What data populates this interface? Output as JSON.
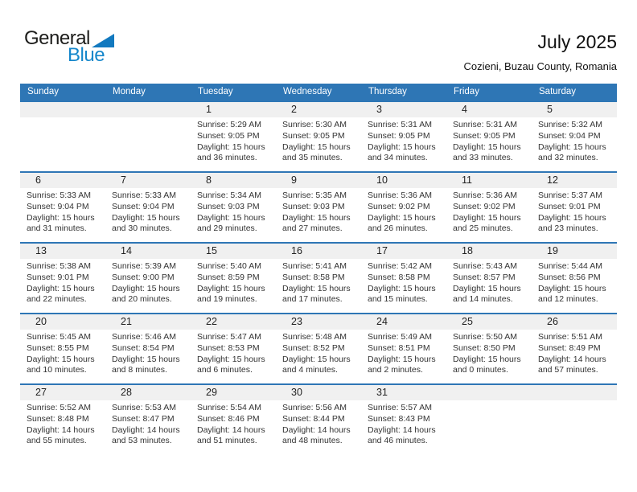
{
  "brand": {
    "line1": "General",
    "line2": "Blue"
  },
  "title": "July 2025",
  "subtitle": "Cozieni, Buzau County, Romania",
  "colors": {
    "header_blue": "#2e76b5",
    "row_border_blue": "#2e76b5",
    "day_strip_gray": "#f0f0f0",
    "brand_blue": "#1687cb",
    "triangle_blue": "#1279bf"
  },
  "weekdays": [
    "Sunday",
    "Monday",
    "Tuesday",
    "Wednesday",
    "Thursday",
    "Friday",
    "Saturday"
  ],
  "weeks": [
    [
      null,
      null,
      {
        "day": "1",
        "sunrise": "Sunrise: 5:29 AM",
        "sunset": "Sunset: 9:05 PM",
        "daylight": "Daylight: 15 hours and 36 minutes."
      },
      {
        "day": "2",
        "sunrise": "Sunrise: 5:30 AM",
        "sunset": "Sunset: 9:05 PM",
        "daylight": "Daylight: 15 hours and 35 minutes."
      },
      {
        "day": "3",
        "sunrise": "Sunrise: 5:31 AM",
        "sunset": "Sunset: 9:05 PM",
        "daylight": "Daylight: 15 hours and 34 minutes."
      },
      {
        "day": "4",
        "sunrise": "Sunrise: 5:31 AM",
        "sunset": "Sunset: 9:05 PM",
        "daylight": "Daylight: 15 hours and 33 minutes."
      },
      {
        "day": "5",
        "sunrise": "Sunrise: 5:32 AM",
        "sunset": "Sunset: 9:04 PM",
        "daylight": "Daylight: 15 hours and 32 minutes."
      }
    ],
    [
      {
        "day": "6",
        "sunrise": "Sunrise: 5:33 AM",
        "sunset": "Sunset: 9:04 PM",
        "daylight": "Daylight: 15 hours and 31 minutes."
      },
      {
        "day": "7",
        "sunrise": "Sunrise: 5:33 AM",
        "sunset": "Sunset: 9:04 PM",
        "daylight": "Daylight: 15 hours and 30 minutes."
      },
      {
        "day": "8",
        "sunrise": "Sunrise: 5:34 AM",
        "sunset": "Sunset: 9:03 PM",
        "daylight": "Daylight: 15 hours and 29 minutes."
      },
      {
        "day": "9",
        "sunrise": "Sunrise: 5:35 AM",
        "sunset": "Sunset: 9:03 PM",
        "daylight": "Daylight: 15 hours and 27 minutes."
      },
      {
        "day": "10",
        "sunrise": "Sunrise: 5:36 AM",
        "sunset": "Sunset: 9:02 PM",
        "daylight": "Daylight: 15 hours and 26 minutes."
      },
      {
        "day": "11",
        "sunrise": "Sunrise: 5:36 AM",
        "sunset": "Sunset: 9:02 PM",
        "daylight": "Daylight: 15 hours and 25 minutes."
      },
      {
        "day": "12",
        "sunrise": "Sunrise: 5:37 AM",
        "sunset": "Sunset: 9:01 PM",
        "daylight": "Daylight: 15 hours and 23 minutes."
      }
    ],
    [
      {
        "day": "13",
        "sunrise": "Sunrise: 5:38 AM",
        "sunset": "Sunset: 9:01 PM",
        "daylight": "Daylight: 15 hours and 22 minutes."
      },
      {
        "day": "14",
        "sunrise": "Sunrise: 5:39 AM",
        "sunset": "Sunset: 9:00 PM",
        "daylight": "Daylight: 15 hours and 20 minutes."
      },
      {
        "day": "15",
        "sunrise": "Sunrise: 5:40 AM",
        "sunset": "Sunset: 8:59 PM",
        "daylight": "Daylight: 15 hours and 19 minutes."
      },
      {
        "day": "16",
        "sunrise": "Sunrise: 5:41 AM",
        "sunset": "Sunset: 8:58 PM",
        "daylight": "Daylight: 15 hours and 17 minutes."
      },
      {
        "day": "17",
        "sunrise": "Sunrise: 5:42 AM",
        "sunset": "Sunset: 8:58 PM",
        "daylight": "Daylight: 15 hours and 15 minutes."
      },
      {
        "day": "18",
        "sunrise": "Sunrise: 5:43 AM",
        "sunset": "Sunset: 8:57 PM",
        "daylight": "Daylight: 15 hours and 14 minutes."
      },
      {
        "day": "19",
        "sunrise": "Sunrise: 5:44 AM",
        "sunset": "Sunset: 8:56 PM",
        "daylight": "Daylight: 15 hours and 12 minutes."
      }
    ],
    [
      {
        "day": "20",
        "sunrise": "Sunrise: 5:45 AM",
        "sunset": "Sunset: 8:55 PM",
        "daylight": "Daylight: 15 hours and 10 minutes."
      },
      {
        "day": "21",
        "sunrise": "Sunrise: 5:46 AM",
        "sunset": "Sunset: 8:54 PM",
        "daylight": "Daylight: 15 hours and 8 minutes."
      },
      {
        "day": "22",
        "sunrise": "Sunrise: 5:47 AM",
        "sunset": "Sunset: 8:53 PM",
        "daylight": "Daylight: 15 hours and 6 minutes."
      },
      {
        "day": "23",
        "sunrise": "Sunrise: 5:48 AM",
        "sunset": "Sunset: 8:52 PM",
        "daylight": "Daylight: 15 hours and 4 minutes."
      },
      {
        "day": "24",
        "sunrise": "Sunrise: 5:49 AM",
        "sunset": "Sunset: 8:51 PM",
        "daylight": "Daylight: 15 hours and 2 minutes."
      },
      {
        "day": "25",
        "sunrise": "Sunrise: 5:50 AM",
        "sunset": "Sunset: 8:50 PM",
        "daylight": "Daylight: 15 hours and 0 minutes."
      },
      {
        "day": "26",
        "sunrise": "Sunrise: 5:51 AM",
        "sunset": "Sunset: 8:49 PM",
        "daylight": "Daylight: 14 hours and 57 minutes."
      }
    ],
    [
      {
        "day": "27",
        "sunrise": "Sunrise: 5:52 AM",
        "sunset": "Sunset: 8:48 PM",
        "daylight": "Daylight: 14 hours and 55 minutes."
      },
      {
        "day": "28",
        "sunrise": "Sunrise: 5:53 AM",
        "sunset": "Sunset: 8:47 PM",
        "daylight": "Daylight: 14 hours and 53 minutes."
      },
      {
        "day": "29",
        "sunrise": "Sunrise: 5:54 AM",
        "sunset": "Sunset: 8:46 PM",
        "daylight": "Daylight: 14 hours and 51 minutes."
      },
      {
        "day": "30",
        "sunrise": "Sunrise: 5:56 AM",
        "sunset": "Sunset: 8:44 PM",
        "daylight": "Daylight: 14 hours and 48 minutes."
      },
      {
        "day": "31",
        "sunrise": "Sunrise: 5:57 AM",
        "sunset": "Sunset: 8:43 PM",
        "daylight": "Daylight: 14 hours and 46 minutes."
      },
      null,
      null
    ]
  ]
}
